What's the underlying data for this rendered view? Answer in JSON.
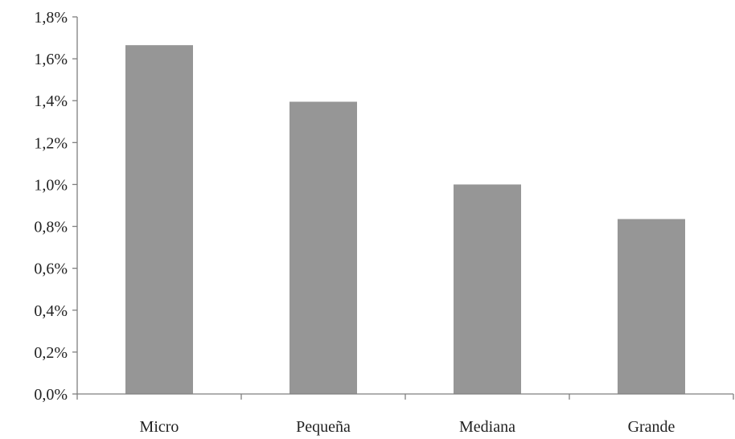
{
  "chart_data": {
    "type": "bar",
    "title": "",
    "xlabel": "",
    "ylabel": "",
    "categories": [
      "Micro",
      "Pequeña",
      "Mediana",
      "Grande"
    ],
    "values": [
      1.665,
      1.395,
      1.0,
      0.835
    ],
    "ylim": [
      0,
      1.8
    ],
    "y_ticks": [
      0.0,
      0.2,
      0.4,
      0.6,
      0.8,
      1.0,
      1.2,
      1.4,
      1.6,
      1.8
    ],
    "y_tick_labels": [
      "0,0%",
      "0,2%",
      "0,4%",
      "0,6%",
      "0,8%",
      "1,0%",
      "1,2%",
      "1,4%",
      "1,6%",
      "1,8%"
    ],
    "grid": false,
    "legend": "none",
    "colors": {
      "bar": "#969696",
      "axis": "#7f7f7f",
      "text": "#222222"
    }
  }
}
